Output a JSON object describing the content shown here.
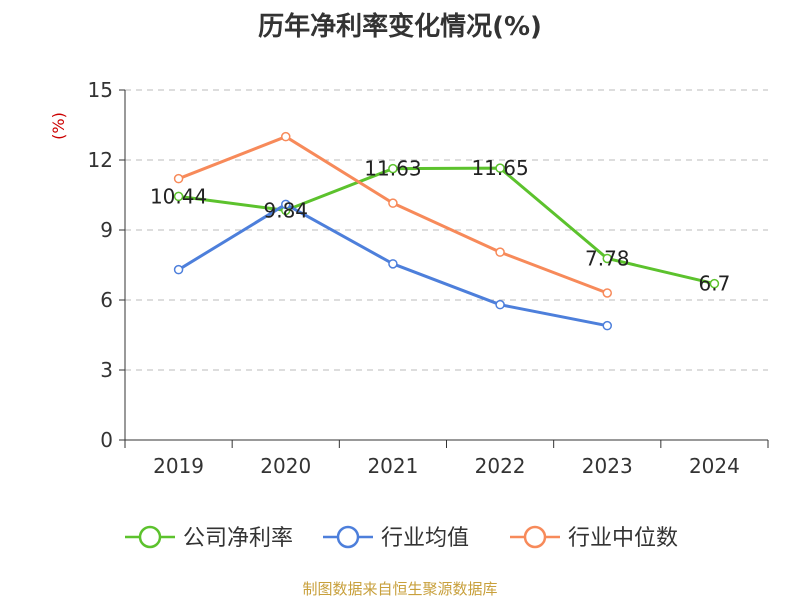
{
  "title": "历年净利率变化情况(%)",
  "source": "制图数据来自恒生聚源数据库",
  "colors": {
    "net_margin": "#5cc22d",
    "industry_avg": "#4d7fdb",
    "industry_median": "#f78a5a",
    "grid": "#bbbbbb",
    "axis": "#333333",
    "ylabel": "#cc0000"
  },
  "chart_data": {
    "type": "line",
    "title": "历年净利率变化情况(%)",
    "ylabel": "(%)",
    "xlabel": "",
    "ylim": [
      0,
      15
    ],
    "yticks": [
      "0",
      "3",
      "6",
      "9",
      "12",
      "15"
    ],
    "categories": [
      "2019",
      "2020",
      "2021",
      "2022",
      "2023",
      "2024"
    ],
    "grid": true,
    "legend_position": "bottom",
    "series": [
      {
        "name": "公司净利率",
        "color": "#5cc22d",
        "values": [
          10.44,
          9.84,
          11.63,
          11.65,
          7.78,
          6.7
        ],
        "labels": [
          "10.44",
          "9.84",
          "11.63",
          "11.65",
          "7.78",
          "6.7"
        ]
      },
      {
        "name": "行业均值",
        "color": "#4d7fdb",
        "values": [
          7.3,
          10.1,
          7.55,
          5.8,
          4.9,
          null
        ]
      },
      {
        "name": "行业中位数",
        "color": "#f78a5a",
        "values": [
          11.2,
          13.0,
          10.15,
          8.05,
          6.3,
          null
        ]
      }
    ]
  }
}
